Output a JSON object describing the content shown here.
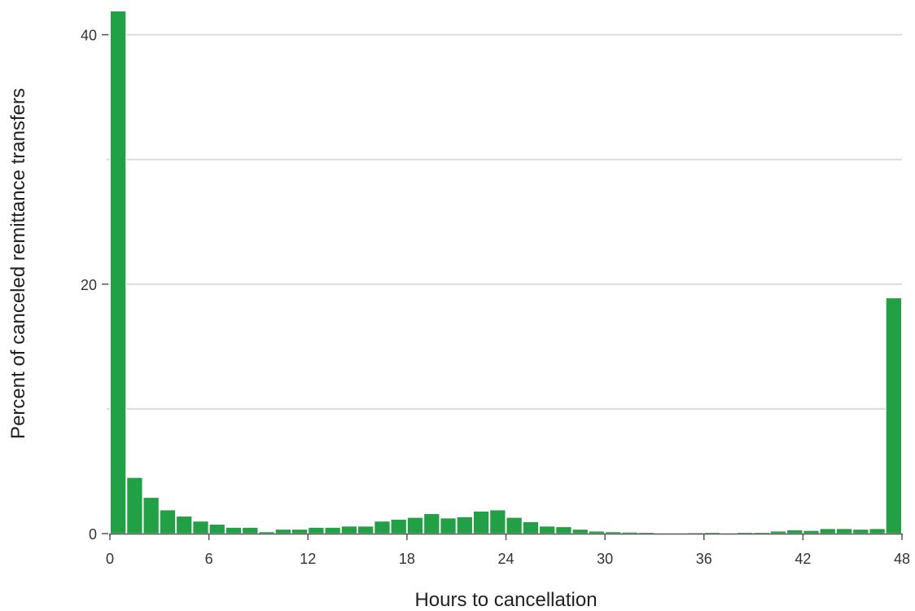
{
  "chart_data": {
    "type": "bar",
    "title": "",
    "xlabel": "Hours to cancellation",
    "ylabel": "Percent of canceled remittance transfers",
    "bin_width_hours": 1,
    "x_start": [
      0,
      1,
      2,
      3,
      4,
      5,
      6,
      7,
      8,
      9,
      10,
      11,
      12,
      13,
      14,
      15,
      16,
      17,
      18,
      19,
      20,
      21,
      22,
      23,
      24,
      25,
      26,
      27,
      28,
      29,
      30,
      31,
      32,
      33,
      34,
      35,
      36,
      37,
      38,
      39,
      40,
      41,
      42,
      43,
      44,
      45,
      46,
      47
    ],
    "values": [
      41.9,
      4.5,
      2.9,
      1.9,
      1.4,
      1.0,
      0.75,
      0.5,
      0.5,
      0.15,
      0.35,
      0.35,
      0.5,
      0.5,
      0.6,
      0.6,
      1.0,
      1.15,
      1.3,
      1.6,
      1.25,
      1.35,
      1.8,
      1.9,
      1.3,
      0.95,
      0.6,
      0.55,
      0.35,
      0.2,
      0.15,
      0.12,
      0.1,
      0.05,
      0.05,
      0.08,
      0.1,
      0.05,
      0.1,
      0.1,
      0.2,
      0.3,
      0.25,
      0.4,
      0.4,
      0.35,
      0.4,
      18.9
    ],
    "xlim": [
      0,
      48
    ],
    "ylim": [
      0,
      42
    ],
    "x_ticks": [
      0,
      6,
      12,
      18,
      24,
      30,
      36,
      42,
      48
    ],
    "y_ticks": [
      0,
      20,
      40
    ],
    "y_gridlines": [
      0,
      10,
      20,
      30,
      40
    ],
    "grid": true,
    "colors": {
      "bar": "#22a045",
      "bar_stroke": "#ffffff",
      "grid": "#dcdcdc",
      "axis": "#555555"
    }
  }
}
